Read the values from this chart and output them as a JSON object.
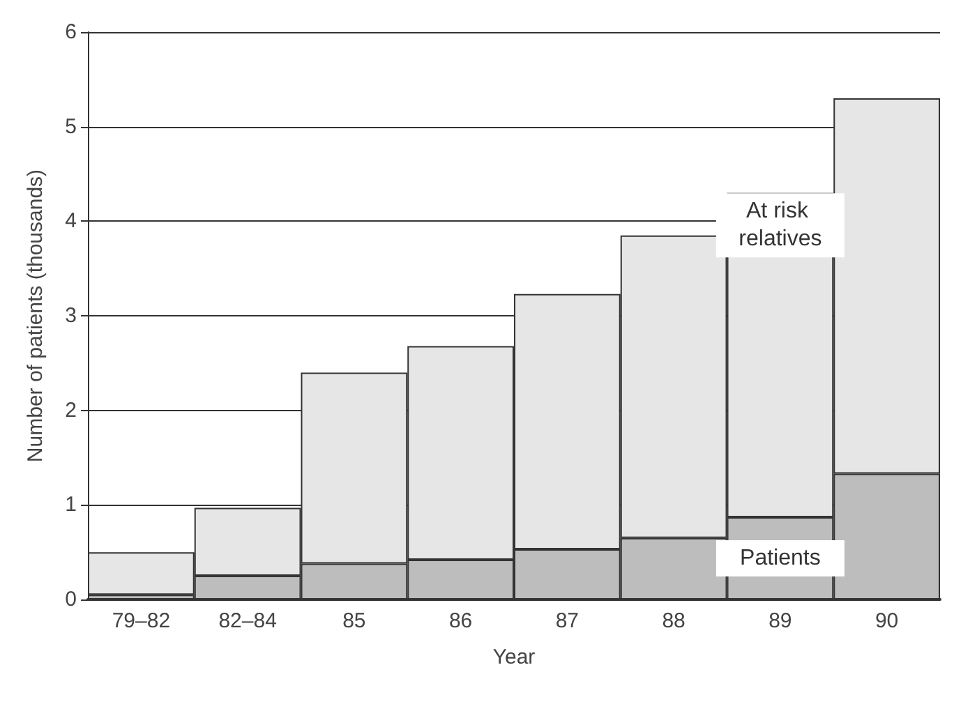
{
  "chart_data": {
    "type": "bar",
    "stacked": true,
    "xlabel": "Year",
    "ylabel": "Number of patients (thousands)",
    "categories": [
      "79–82",
      "82–84",
      "85",
      "86",
      "87",
      "88",
      "89",
      "90"
    ],
    "series": [
      {
        "name": "Patients",
        "color": "#bdbdbd",
        "values": [
          0.05,
          0.25,
          0.38,
          0.42,
          0.53,
          0.65,
          0.87,
          1.33
        ]
      },
      {
        "name": "At risk relatives",
        "color": "#e6e6e6",
        "values": [
          0.45,
          0.72,
          2.02,
          2.26,
          2.7,
          3.2,
          3.43,
          3.97
        ]
      }
    ],
    "ylim": [
      0,
      6
    ],
    "yticks": [
      0,
      1,
      2,
      3,
      4,
      5,
      6
    ],
    "grid": "y",
    "legend": false
  }
}
